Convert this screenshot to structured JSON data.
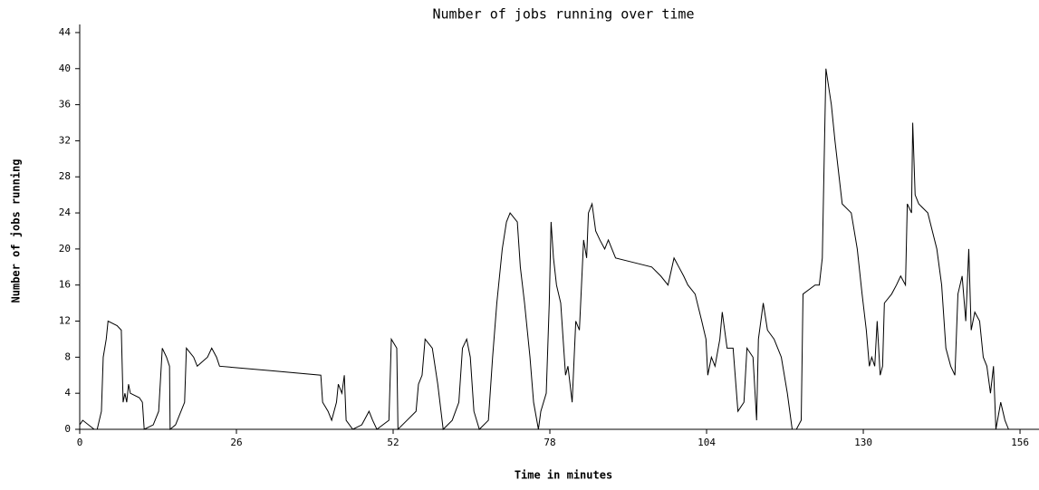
{
  "chart_data": {
    "type": "line",
    "title": "Number of jobs running over time",
    "x_label": "Time in minutes",
    "y_label": "Number of jobs running",
    "xlim": [
      0,
      159
    ],
    "ylim": [
      0,
      45
    ],
    "xticks": [
      0,
      26,
      52,
      78,
      104,
      130,
      156
    ],
    "yticks": [
      0,
      4,
      8,
      12,
      16,
      20,
      24,
      28,
      32,
      36,
      40,
      44
    ],
    "x": [
      0,
      0.5,
      2.4,
      2.9,
      3.6,
      3.9,
      4.4,
      4.7,
      6.2,
      6.9,
      7.2,
      7.5,
      7.8,
      8.1,
      8.4,
      9.9,
      10.4,
      10.7,
      12.2,
      13.1,
      13.7,
      14.4,
      14.9,
      15,
      15.9,
      17.4,
      17.7,
      18.9,
      19.5,
      21.2,
      21.9,
      22.7,
      23.2,
      31.7,
      40,
      40.3,
      41.2,
      41.8,
      42.6,
      42.9,
      43.5,
      43.9,
      44.2,
      45.3,
      46.8,
      48,
      48.6,
      49.3,
      51.3,
      51.7,
      52.6,
      52.8,
      54.3,
      55.8,
      56.2,
      56.8,
      57.3,
      58.5,
      59.4,
      60.3,
      61.8,
      62.9,
      63.5,
      64.2,
      64.8,
      65.4,
      66.3,
      67.8,
      68.5,
      69.2,
      70.1,
      70.8,
      71.4,
      72.6,
      73.1,
      73.8,
      74.7,
      75.3,
      76.1,
      76.5,
      77.4,
      77.9,
      78.2,
      78.6,
      79.1,
      79.8,
      80.6,
      81,
      81.7,
      82.3,
      82.9,
      83.6,
      84.1,
      84.4,
      85,
      85.6,
      86.3,
      87.1,
      87.7,
      88.3,
      88.9,
      91.9,
      94.9,
      96.4,
      97.6,
      98.6,
      99.4,
      100.2,
      100.9,
      102.1,
      103.2,
      103.9,
      104.2,
      104.8,
      105.4,
      106.2,
      106.6,
      107.4,
      108.4,
      109.2,
      110.2,
      110.7,
      111.7,
      112.3,
      112.6,
      113.4,
      114.1,
      115.2,
      116.4,
      117.4,
      118.2,
      118.9,
      119.7,
      120,
      122,
      122.7,
      123.2,
      123.8,
      124.7,
      125.3,
      126.5,
      128,
      129,
      129.8,
      130.5,
      131,
      131.4,
      131.9,
      132.3,
      132.8,
      133.2,
      133.5,
      134.7,
      135.5,
      136.2,
      137,
      137.3,
      138,
      138.2,
      138.6,
      139.2,
      140.7,
      142.2,
      143,
      143.7,
      144.5,
      145.2,
      145.7,
      146.4,
      147,
      147.5,
      147.9,
      148.5,
      149.3,
      149.9,
      150.5,
      151.1,
      151.6,
      152,
      152.8,
      153.5,
      154.1
    ],
    "series": [
      {
        "color": "#000000",
        "values": [
          0.5,
          1,
          0,
          0,
          2,
          8,
          10,
          12,
          11.5,
          11,
          3,
          4,
          3,
          5,
          4,
          3.5,
          3,
          0,
          0.5,
          2,
          9,
          8,
          7,
          0,
          0.5,
          3,
          9,
          8,
          7,
          8,
          9,
          8,
          7,
          6.5,
          6,
          3,
          2,
          1,
          3,
          5,
          4,
          6,
          1,
          0,
          0.5,
          2,
          1,
          0,
          1,
          10,
          9,
          0,
          1,
          2,
          5,
          6,
          10,
          9,
          5,
          0,
          1,
          3,
          9,
          10,
          8,
          2,
          0,
          1,
          8,
          14,
          20,
          23,
          24,
          23,
          18,
          14,
          8,
          3,
          0,
          2,
          4,
          14,
          23,
          19,
          16,
          14,
          6,
          7,
          3,
          12,
          11,
          21,
          19,
          24,
          25,
          22,
          21,
          20,
          21,
          20,
          19,
          18.5,
          18,
          17,
          16,
          19,
          18,
          17,
          16,
          15,
          12,
          10,
          6,
          8,
          7,
          10,
          13,
          9,
          9,
          2,
          3,
          9,
          8,
          1,
          10,
          14,
          11,
          10,
          8,
          4,
          0,
          0,
          1,
          15,
          16,
          16,
          19,
          40,
          36,
          32,
          25,
          24,
          20,
          15,
          11,
          7,
          8,
          7,
          12,
          6,
          7,
          14,
          15,
          16,
          17,
          16,
          25,
          24,
          34,
          26,
          25,
          24,
          20,
          16,
          9,
          7,
          6,
          15,
          17,
          12,
          20,
          11,
          13,
          12,
          8,
          7,
          4,
          7,
          0,
          3,
          1,
          0
        ]
      }
    ]
  }
}
